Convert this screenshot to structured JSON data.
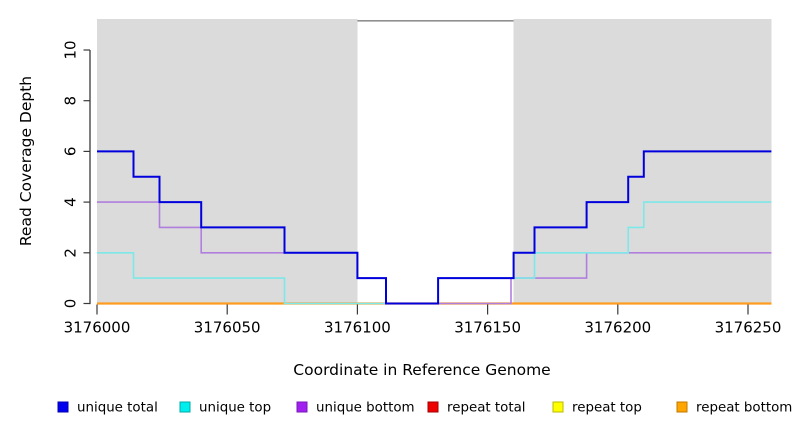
{
  "axes": {
    "x": {
      "title": "Coordinate in Reference Genome",
      "tick_values": [
        3176000,
        3176050,
        3176100,
        3176150,
        3176200,
        3176250
      ],
      "tick_labels": [
        "3176000",
        "3176050",
        "3176100",
        "3176150",
        "3176200",
        "3176250"
      ]
    },
    "y": {
      "title": "Read Coverage Depth",
      "tick_values": [
        0,
        2,
        4,
        6,
        8,
        10
      ],
      "tick_labels": [
        "0",
        "2",
        "4",
        "6",
        "8",
        "10"
      ]
    }
  },
  "legend": {
    "items": [
      {
        "label": "unique total",
        "fill": "#0000EE",
        "border": "#0000B0"
      },
      {
        "label": "unique top",
        "fill": "#00EEEE",
        "border": "#00AAAA"
      },
      {
        "label": "unique bottom",
        "fill": "#A020F0",
        "border": "#7A18B8"
      },
      {
        "label": "repeat total",
        "fill": "#EE0000",
        "border": "#A00000"
      },
      {
        "label": "repeat top",
        "fill": "#FFFF00",
        "border": "#B8B800"
      },
      {
        "label": "repeat bottom",
        "fill": "#FFA500",
        "border": "#C07800"
      }
    ]
  },
  "colors": {
    "region_fill": "#DBDBDB",
    "gap_border": "#909090",
    "axis": "#2A2A2A",
    "tick": "#3A3A3A"
  },
  "chart_data": {
    "type": "line",
    "subtype": "step",
    "title": "",
    "xlabel": "Coordinate in Reference Genome",
    "ylabel": "Read Coverage Depth",
    "xlim": [
      3176000,
      3176259
    ],
    "ylim": [
      0,
      11.2
    ],
    "grid": false,
    "legend_position": "bottom",
    "shaded_regions": [
      {
        "from": 3176000,
        "to": 3176100
      },
      {
        "from": 3176160,
        "to": 3176259
      }
    ],
    "uncovered_gap": {
      "from": 3176100,
      "to": 3176160,
      "top_value": 11.15
    },
    "series": [
      {
        "name": "repeat total",
        "line_color": "#DD0000",
        "points": [
          [
            3176000,
            0
          ]
        ],
        "end": 3176259
      },
      {
        "name": "repeat top",
        "line_color": "#EEEE00",
        "points": [
          [
            3176000,
            0
          ]
        ],
        "end": 3176259
      },
      {
        "name": "repeat bottom",
        "line_color": "#FF9C20",
        "points": [
          [
            3176000,
            0
          ]
        ],
        "end": 3176259
      },
      {
        "name": "unique bottom",
        "line_color": "#B07FDE",
        "points": [
          [
            3176000,
            4
          ],
          [
            3176024,
            3
          ],
          [
            3176040,
            2
          ],
          [
            3176100,
            1
          ],
          [
            3176111,
            0
          ],
          [
            3176159,
            1
          ],
          [
            3176188,
            2
          ]
        ],
        "end": 3176259
      },
      {
        "name": "unique top",
        "line_color": "#7CE8E8",
        "points": [
          [
            3176000,
            2
          ],
          [
            3176014,
            1
          ],
          [
            3176072,
            0
          ],
          [
            3176131,
            1
          ],
          [
            3176168,
            2
          ],
          [
            3176204,
            3
          ],
          [
            3176210,
            4
          ]
        ],
        "end": 3176259
      },
      {
        "name": "unique total",
        "line_color": "#0000DD",
        "points": [
          [
            3176000,
            6
          ],
          [
            3176014,
            5
          ],
          [
            3176024,
            4
          ],
          [
            3176040,
            3
          ],
          [
            3176072,
            2
          ],
          [
            3176100,
            1
          ],
          [
            3176111,
            0
          ],
          [
            3176131,
            1
          ],
          [
            3176160,
            2
          ],
          [
            3176168,
            3
          ],
          [
            3176188,
            4
          ],
          [
            3176204,
            5
          ],
          [
            3176210,
            6
          ]
        ],
        "end": 3176259
      }
    ]
  }
}
